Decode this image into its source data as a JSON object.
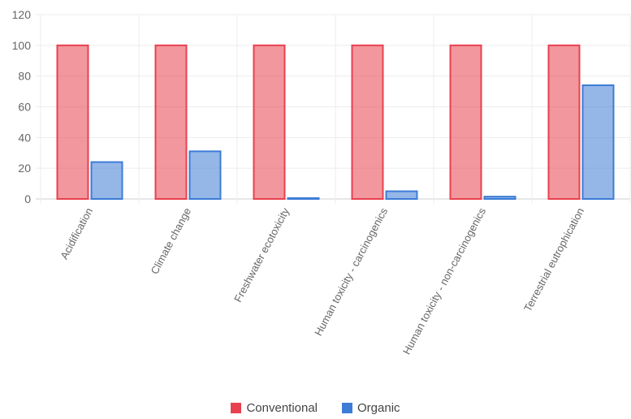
{
  "chart_data": {
    "type": "bar",
    "categories": [
      "Acidification",
      "Climate change",
      "Freshwater ecotoxicity",
      "Human toxicity - carcinogenics",
      "Human toxicity - non-carcinogenics",
      "Terrestrial eutrophication"
    ],
    "series": [
      {
        "name": "Conventional",
        "values": [
          100,
          100,
          100,
          100,
          100,
          100
        ],
        "color": "#e8414f"
      },
      {
        "name": "Organic",
        "values": [
          24,
          31,
          0.5,
          5,
          1.5,
          74
        ],
        "color": "#3d7cd6"
      }
    ],
    "yticks": [
      0,
      20,
      40,
      60,
      80,
      100,
      120
    ],
    "ylim": [
      0,
      120
    ],
    "grid": true,
    "legend_position": "bottom-center"
  }
}
